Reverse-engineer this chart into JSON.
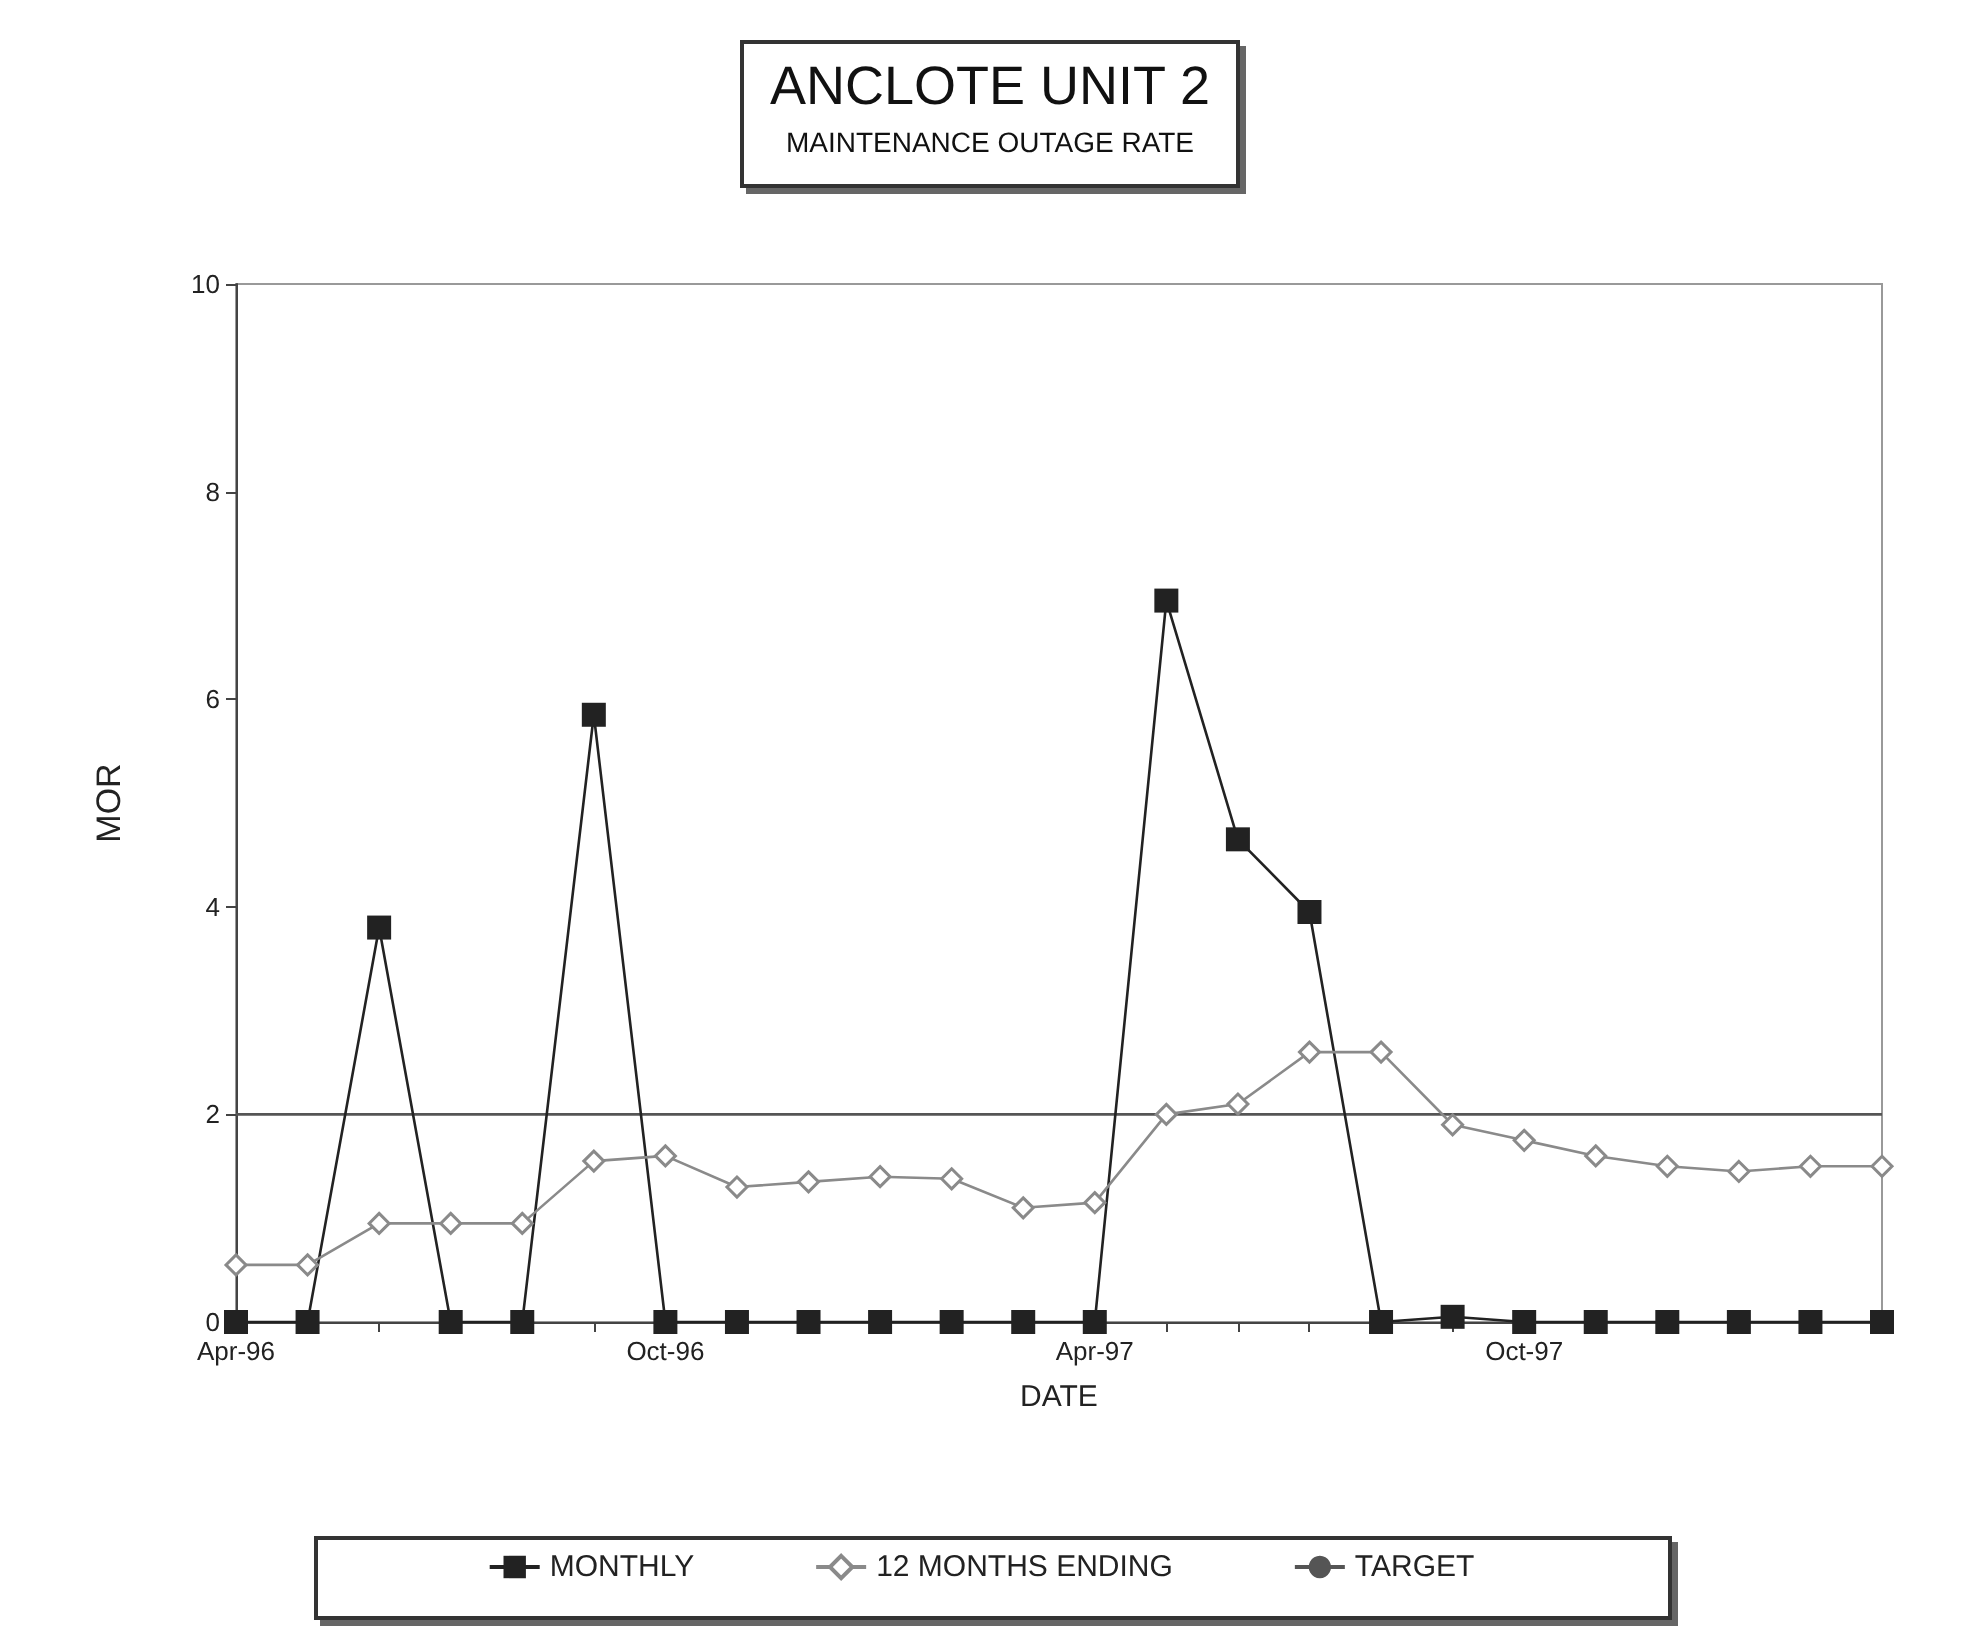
{
  "chart_data": {
    "type": "line",
    "title": "ANCLOTE UNIT 2",
    "subtitle": "MAINTENANCE OUTAGE RATE",
    "xlabel": "DATE",
    "ylabel": "MOR",
    "categories": [
      "Apr-96",
      null,
      null,
      null,
      null,
      null,
      "Oct-96",
      null,
      null,
      null,
      null,
      null,
      "Apr-97",
      null,
      null,
      null,
      null,
      null,
      "Oct-97",
      null,
      null,
      null,
      null,
      null
    ],
    "series": [
      {
        "name": "MONTHLY",
        "color": "#222222",
        "marker": "square",
        "values": [
          0,
          0,
          3.8,
          0,
          0,
          5.85,
          0,
          0,
          0,
          0,
          0,
          0,
          0,
          6.95,
          4.65,
          3.95,
          0,
          0.05,
          0,
          0,
          0,
          0,
          0,
          0
        ]
      },
      {
        "name": "12 MONTHS ENDING",
        "color": "#8a8a8a",
        "marker": "diamond",
        "values": [
          0.55,
          0.55,
          0.95,
          0.95,
          0.95,
          1.55,
          1.6,
          1.3,
          1.35,
          1.4,
          1.38,
          1.1,
          1.15,
          2.0,
          2.1,
          2.6,
          2.6,
          1.9,
          1.75,
          1.6,
          1.5,
          1.45,
          1.5,
          1.5
        ]
      },
      {
        "name": "TARGET",
        "color": "#555555",
        "marker": "none",
        "values": [
          2,
          2,
          2,
          2,
          2,
          2,
          2,
          2,
          2,
          2,
          2,
          2,
          2,
          2,
          2,
          2,
          2,
          2,
          2,
          2,
          2,
          2,
          2,
          2
        ]
      }
    ],
    "ylim": [
      0,
      10
    ],
    "yticks": [
      0,
      2,
      4,
      6,
      8,
      10
    ],
    "grid": false,
    "legend": "bottom",
    "line_style": "solid"
  }
}
